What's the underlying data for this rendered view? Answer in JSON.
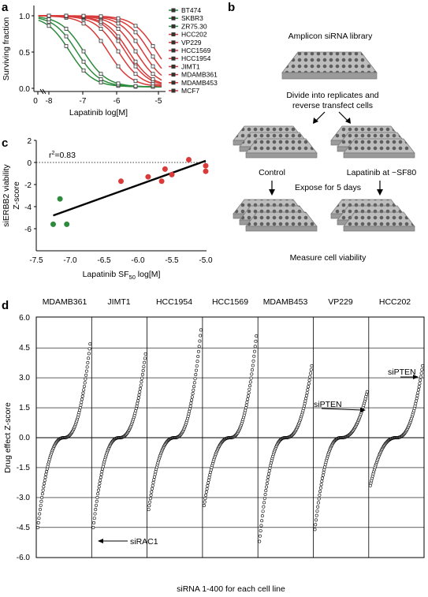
{
  "panels": {
    "a": "a",
    "b": "b",
    "c": "c",
    "d": "d"
  },
  "panel_a": {
    "ylabel": "Surviving fraction",
    "xlabel": "Lapatinib log[M]",
    "yticks": [
      "0.0",
      "0.5",
      "1.0"
    ],
    "xticks": [
      "0",
      "-8",
      "-7",
      "-6",
      "-5"
    ],
    "legend": [
      "BT474",
      "SKBR3",
      "ZR75.30",
      "HCC202",
      "VP229",
      "HCC1569",
      "HCC1954",
      "JIMT1",
      "MDAMB361",
      "MDAMB453",
      "MCF7"
    ]
  },
  "panel_b": {
    "title": "Amplicon siRNA library",
    "step1_line1": "Divide into replicates and",
    "step1_line2": "reverse transfect cells",
    "control": "Control",
    "lapatinib": "Lapatinib at ~SF80",
    "expose": "Expose for 5 days",
    "measure": "Measure cell viability"
  },
  "panel_c": {
    "ylabel_line1": "siERBB2 viability",
    "ylabel_line2": "Z-score",
    "xlabel_main": "Lapatinib SF",
    "xlabel_sub": "50",
    "xlabel_tail": " log[M]",
    "r2_prefix": "r",
    "r2_sup": "2",
    "r2_value": "=0.83",
    "yticks": [
      "2",
      "0",
      "-2",
      "-4",
      "-6"
    ],
    "xticks": [
      "-7.5",
      "-7.0",
      "-6.5",
      "-6.0",
      "-5.5",
      "-5.0"
    ]
  },
  "panel_d": {
    "ylabel": "Drug effect Z-score",
    "xlabel": "siRNA 1-400 for each cell line",
    "columns": [
      "MDAMB361",
      "JIMT1",
      "HCC1954",
      "HCC1569",
      "MDAMB453",
      "VP229",
      "HCC202"
    ],
    "yticks": [
      "6.0",
      "4.5",
      "3.0",
      "1.5",
      "0.0",
      "-1.5",
      "-3.0",
      "-4.5",
      "-6.0"
    ],
    "annotations": {
      "rac1": "siRAC1",
      "pten_vp229": "siPTEN",
      "pten_hcc202": "siPTEN"
    }
  },
  "chart_data": [
    {
      "type": "line",
      "xlabel": "Lapatinib log[M]",
      "ylabel": "Surviving fraction",
      "ylim": [
        0,
        1.1
      ],
      "series": [
        {
          "name": "BT474",
          "color": "#2e8b3e",
          "ic50": -7.4
        },
        {
          "name": "SKBR3",
          "color": "#2e8b3e",
          "ic50": -7.2
        },
        {
          "name": "ZR75.30",
          "color": "#2e8b3e",
          "ic50": -7.0
        },
        {
          "name": "HCC202",
          "color": "#d93a3a",
          "ic50": -6.3
        },
        {
          "name": "VP229",
          "color": "#d93a3a",
          "ic50": -6.0
        },
        {
          "name": "HCC1569",
          "color": "#d93a3a",
          "ic50": -5.8
        },
        {
          "name": "HCC1954",
          "color": "#d93a3a",
          "ic50": -5.7
        },
        {
          "name": "JIMT1",
          "color": "#d93a3a",
          "ic50": -5.5
        },
        {
          "name": "MDAMB361",
          "color": "#d93a3a",
          "ic50": -5.3
        },
        {
          "name": "MDAMB453",
          "color": "#d93a3a",
          "ic50": -5.1
        },
        {
          "name": "MCF7",
          "color": "#d93a3a",
          "ic50": -4.9
        }
      ]
    },
    {
      "type": "scatter",
      "xlabel": "Lapatinib SF50 log[M]",
      "ylabel": "siERBB2 viability Z-score",
      "xlim": [
        -7.5,
        -5.0
      ],
      "ylim": [
        -7,
        2
      ],
      "points": [
        {
          "x": -7.25,
          "y": -5.6,
          "color": "#2e8b3e"
        },
        {
          "x": -7.15,
          "y": -3.3,
          "color": "#2e8b3e"
        },
        {
          "x": -7.05,
          "y": -5.6,
          "color": "#2e8b3e"
        },
        {
          "x": -6.25,
          "y": -1.7,
          "color": "#d93a3a"
        },
        {
          "x": -5.85,
          "y": -1.3,
          "color": "#d93a3a"
        },
        {
          "x": -5.65,
          "y": -1.7,
          "color": "#d93a3a"
        },
        {
          "x": -5.6,
          "y": -0.6,
          "color": "#d93a3a"
        },
        {
          "x": -5.5,
          "y": -1.1,
          "color": "#d93a3a"
        },
        {
          "x": -5.25,
          "y": 0.25,
          "color": "#d93a3a"
        },
        {
          "x": -5.0,
          "y": -0.3,
          "color": "#d93a3a"
        },
        {
          "x": -5.0,
          "y": -0.8,
          "color": "#d93a3a"
        }
      ],
      "fit": {
        "x": [
          -7.25,
          -5.0
        ],
        "y": [
          -4.8,
          0.15
        ]
      }
    },
    {
      "type": "scatter",
      "xlabel": "siRNA 1-400 for each cell line",
      "ylabel": "Drug effect Z-score",
      "ylim": [
        -6,
        6
      ],
      "series": [
        {
          "name": "MDAMB361",
          "min": -4.5,
          "max": 4.7
        },
        {
          "name": "JIMT1",
          "min": -4.5,
          "max": 4.2
        },
        {
          "name": "HCC1954",
          "min": -3.6,
          "max": 5.4
        },
        {
          "name": "HCC1569",
          "min": -3.4,
          "max": 5.1
        },
        {
          "name": "MDAMB453",
          "min": -5.2,
          "max": 3.6
        },
        {
          "name": "VP229",
          "min": -4.6,
          "max": 2.3
        },
        {
          "name": "HCC202",
          "min": -2.4,
          "max": 3.6
        }
      ]
    }
  ]
}
